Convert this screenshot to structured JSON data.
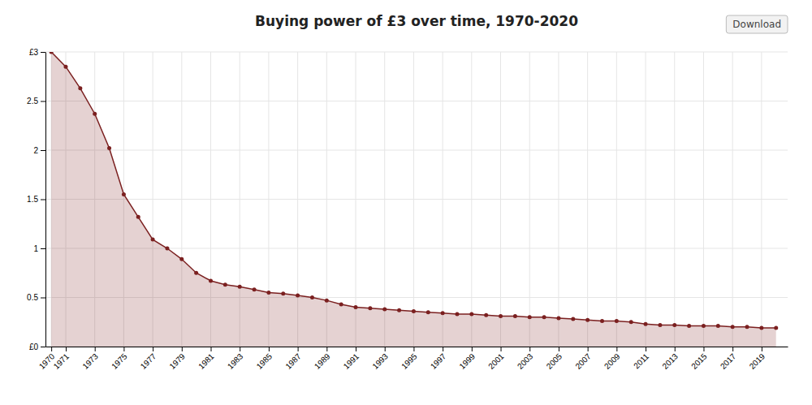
{
  "chart_data": {
    "type": "area",
    "title": "Buying power of £3 over time, 1970-2020",
    "x": [
      1970,
      1971,
      1972,
      1973,
      1974,
      1975,
      1976,
      1977,
      1978,
      1979,
      1980,
      1981,
      1982,
      1983,
      1984,
      1985,
      1986,
      1987,
      1988,
      1989,
      1990,
      1991,
      1992,
      1993,
      1994,
      1995,
      1996,
      1997,
      1998,
      1999,
      2000,
      2001,
      2002,
      2003,
      2004,
      2005,
      2006,
      2007,
      2008,
      2009,
      2010,
      2011,
      2012,
      2013,
      2014,
      2015,
      2016,
      2017,
      2018,
      2019,
      2020
    ],
    "values": [
      3.0,
      2.85,
      2.63,
      2.37,
      2.02,
      1.55,
      1.32,
      1.09,
      1.0,
      0.89,
      0.75,
      0.67,
      0.63,
      0.61,
      0.58,
      0.55,
      0.54,
      0.52,
      0.5,
      0.47,
      0.43,
      0.4,
      0.39,
      0.38,
      0.37,
      0.36,
      0.35,
      0.34,
      0.33,
      0.33,
      0.32,
      0.31,
      0.31,
      0.3,
      0.3,
      0.29,
      0.28,
      0.27,
      0.26,
      0.26,
      0.25,
      0.23,
      0.22,
      0.22,
      0.21,
      0.21,
      0.21,
      0.2,
      0.2,
      0.19,
      0.19
    ],
    "color": "#7B2020",
    "marker": "circle",
    "ylim": [
      0,
      3.0
    ],
    "yticks": [
      {
        "value": 0,
        "label": "£0"
      },
      0.5,
      1,
      1.5,
      2,
      2.5,
      {
        "value": 3.0,
        "label": "£3"
      }
    ],
    "xlim": [
      1969.6,
      2020.8
    ],
    "xticks": [
      1970,
      1971,
      1973,
      1975,
      1977,
      1979,
      1981,
      1983,
      1985,
      1987,
      1989,
      1991,
      1993,
      1995,
      1997,
      1999,
      2001,
      2003,
      2005,
      2007,
      2009,
      2011,
      2013,
      2015,
      2017,
      2019
    ],
    "grid": true,
    "annotations": [
      "Download"
    ]
  }
}
